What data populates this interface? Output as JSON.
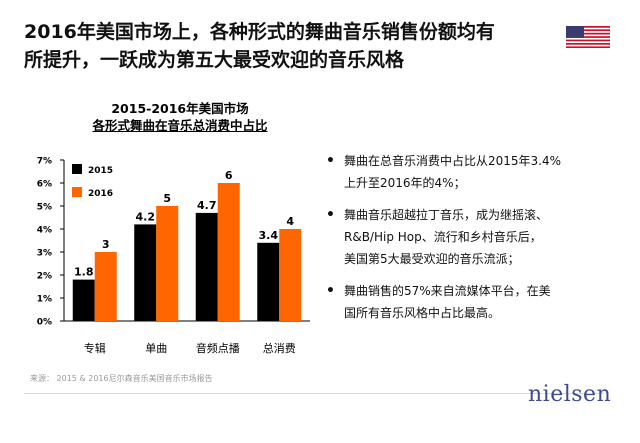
{
  "headline": {
    "line1": "2016年美国市场上，各种形式的舞曲音乐销售份额均有",
    "line2": "所提升，一跃成为第五大最受欢迎的音乐风格"
  },
  "flag_icon": "us-flag-icon",
  "chart_data": {
    "type": "bar",
    "title_line1": "2015-2016年美国市场",
    "title_line2": "各形式舞曲在音乐总消费中占比",
    "categories": [
      "专辑",
      "单曲",
      "音频点播",
      "总消费"
    ],
    "series": [
      {
        "name": "2015",
        "values": [
          1.8,
          4.2,
          4.7,
          3.4
        ],
        "labels": [
          "1.8",
          "4.2",
          "4.7",
          "3.4"
        ],
        "color": "#000000"
      },
      {
        "name": "2016",
        "values": [
          3,
          5,
          6,
          4
        ],
        "labels": [
          "3",
          "5",
          "6",
          "4"
        ],
        "color": "#ff6600"
      }
    ],
    "ylim": [
      0,
      7
    ],
    "yticks": [
      "0%",
      "1%",
      "2%",
      "3%",
      "4%",
      "5%",
      "6%",
      "7%"
    ],
    "legend": "top-left",
    "grid": false
  },
  "bullets": [
    {
      "line1": "舞曲在总音乐消费中占比从2015年3.4%",
      "line2": "上升至2016年的4%；",
      "line3": ""
    },
    {
      "line1": "舞曲音乐超越拉丁音乐，成为继摇滚、",
      "line2": "R&B/Hip Hop、流行和乡村音乐后，",
      "line3": "美国第5大最受欢迎的音乐流派；"
    },
    {
      "line1": "舞曲销售的57%来自流媒体平台，在美",
      "line2": "国所有音乐风格中占比最高。",
      "line3": ""
    }
  ],
  "source": "来源： 2015 & 2016尼尔森音乐美国音乐市场报告",
  "logo": "nielsen"
}
